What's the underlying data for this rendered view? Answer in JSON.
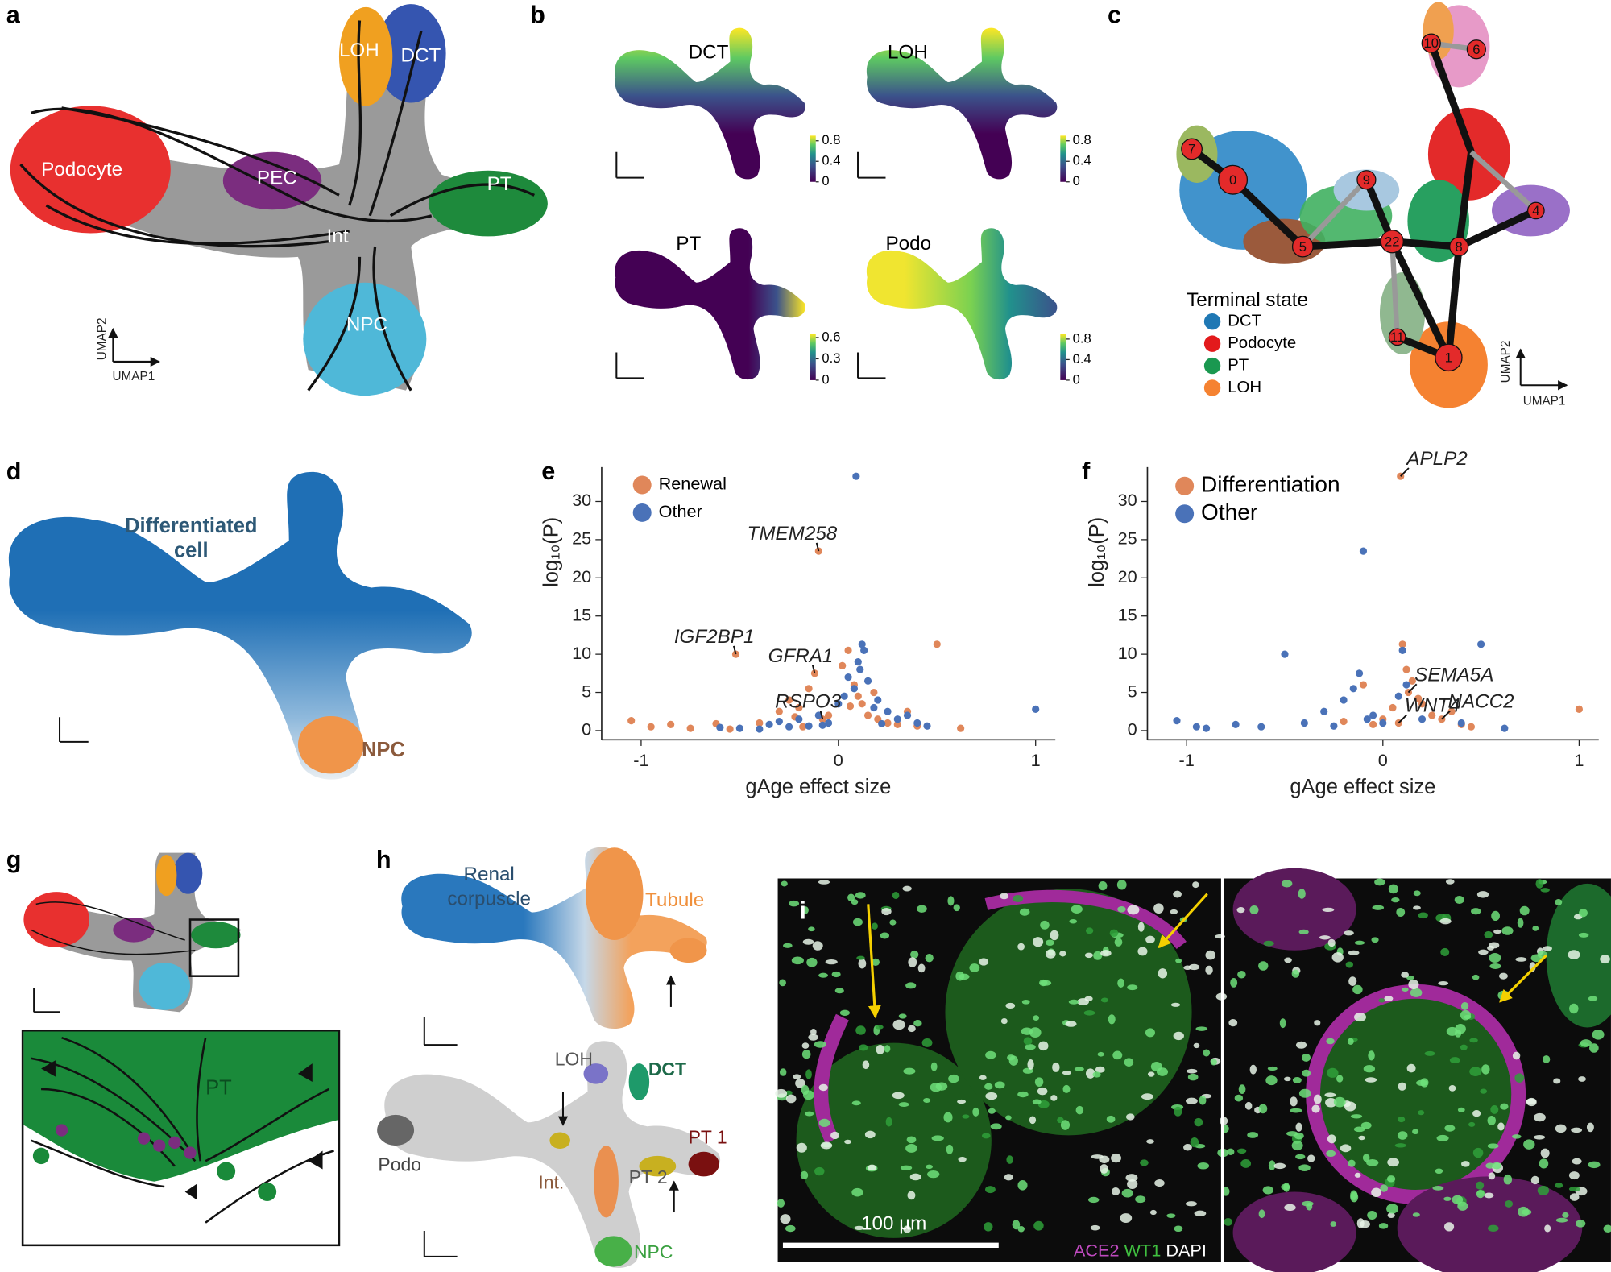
{
  "panel_labels": [
    "a",
    "b",
    "c",
    "d",
    "e",
    "f",
    "g",
    "h",
    "i"
  ],
  "panel_a": {
    "labels": [
      "LOH",
      "DCT",
      "Podocyte",
      "PEC",
      "PT",
      "Int",
      "NPC"
    ],
    "x_axis": "UMAP1",
    "y_axis": "UMAP2"
  },
  "panel_b": {
    "maps": [
      {
        "title": "DCT",
        "colorbar": {
          "lim": [
            0,
            0.9
          ],
          "ticks": [
            0,
            0.4,
            0.8
          ]
        }
      },
      {
        "title": "LOH",
        "colorbar": {
          "lim": [
            0,
            0.9
          ],
          "ticks": [
            0,
            0.4,
            0.8
          ]
        }
      },
      {
        "title": "PT",
        "colorbar": {
          "lim": [
            0,
            0.65
          ],
          "ticks": [
            0,
            0.3,
            0.6
          ]
        }
      },
      {
        "title": "Podo",
        "colorbar": {
          "lim": [
            0,
            0.9
          ],
          "ticks": [
            0,
            0.4,
            0.8
          ]
        }
      }
    ]
  },
  "panel_c": {
    "legend_title": "Terminal state",
    "legend": [
      {
        "name": "DCT",
        "color": "#1f78b4"
      },
      {
        "name": "Podocyte",
        "color": "#e31a1c"
      },
      {
        "name": "PT",
        "color": "#1a9850"
      },
      {
        "name": "LOH",
        "color": "#f58231"
      }
    ],
    "nodes": [
      "7",
      "0",
      "5",
      "9",
      "22",
      "8",
      "4",
      "10",
      "6",
      "11",
      "1"
    ],
    "x_axis": "UMAP1",
    "y_axis": "UMAP2"
  },
  "panel_d": {
    "labels": [
      "Differentiated",
      "cell",
      "NPC"
    ]
  },
  "chart_data": [
    {
      "type": "scatter",
      "x_label": "gAge effect size",
      "y_label": "log₁₀(P)",
      "xlim": [
        -1.2,
        1.1
      ],
      "ylim": [
        -1.2,
        34.5
      ],
      "xticks": [
        -1,
        0,
        1
      ],
      "yticks": [
        0,
        5,
        10,
        15,
        20,
        25,
        30
      ],
      "series": [
        {
          "name": "Renewal",
          "color": "#e0875a",
          "x": [
            -1.05,
            -0.95,
            -0.85,
            -0.75,
            -0.62,
            -0.55,
            -0.52,
            -0.4,
            -0.3,
            -0.25,
            -0.2,
            -0.15,
            -0.12,
            -0.1,
            -0.08,
            -0.05,
            0.02,
            0.05,
            0.08,
            0.1,
            0.12,
            0.15,
            0.2,
            0.25,
            0.3,
            0.35,
            0.4,
            0.5,
            0.62,
            -0.18,
            0.06,
            -0.22,
            0.18
          ],
          "values": [
            1.3,
            0.5,
            0.8,
            0.3,
            0.9,
            0.2,
            10.0,
            1.0,
            2.5,
            4.0,
            3.0,
            5.5,
            7.5,
            23.5,
            1.5,
            2.0,
            8.5,
            10.5,
            6.0,
            4.5,
            3.5,
            2.0,
            1.5,
            1.0,
            0.8,
            2.5,
            0.6,
            11.3,
            0.3,
            0.5,
            3.2,
            1.8,
            5.0
          ]
        },
        {
          "name": "Other",
          "color": "#4a72b8",
          "x": [
            0.09,
            1.0,
            -0.5,
            -0.35,
            -0.3,
            -0.25,
            -0.2,
            -0.15,
            -0.1,
            -0.05,
            0.0,
            0.03,
            0.05,
            0.08,
            0.1,
            0.12,
            0.15,
            0.18,
            0.2,
            0.25,
            0.3,
            0.35,
            0.4,
            0.45,
            -0.6,
            -0.4,
            0.13,
            0.11,
            0.22,
            -0.08
          ],
          "values": [
            33.3,
            2.8,
            0.3,
            0.8,
            1.2,
            0.5,
            1.5,
            0.6,
            2.0,
            1.0,
            3.5,
            4.5,
            7.0,
            5.5,
            9.0,
            11.3,
            6.5,
            3.0,
            4.0,
            2.5,
            1.5,
            2.0,
            1.0,
            0.6,
            0.4,
            0.2,
            10.5,
            8.0,
            0.9,
            0.7
          ]
        }
      ],
      "annotations": [
        {
          "text": "TMEM258",
          "x": -0.1,
          "y": 23.5
        },
        {
          "text": "IGF2BP1",
          "x": -0.52,
          "y": 10.0
        },
        {
          "text": "GFRA1",
          "x": -0.12,
          "y": 7.5
        },
        {
          "text": "RSPO3",
          "x": -0.08,
          "y": 1.5
        }
      ]
    },
    {
      "type": "scatter",
      "x_label": "gAge effect size",
      "y_label": "log₁₀(P)",
      "xlim": [
        -1.2,
        1.1
      ],
      "ylim": [
        -1.2,
        34.5
      ],
      "xticks": [
        -1,
        0,
        1
      ],
      "yticks": [
        0,
        5,
        10,
        15,
        20,
        25,
        30
      ],
      "series": [
        {
          "name": "Differentiation",
          "color": "#e0875a",
          "x": [
            0.09,
            1.0,
            0.1,
            0.15,
            0.13,
            0.2,
            0.25,
            0.3,
            0.35,
            0.12,
            0.05,
            0.0,
            -0.05,
            -0.1,
            -0.2,
            0.4,
            0.45,
            0.08,
            0.18
          ],
          "values": [
            33.3,
            2.8,
            11.3,
            6.5,
            5.0,
            3.5,
            2.0,
            1.5,
            2.5,
            8.0,
            3.0,
            1.5,
            0.8,
            6.0,
            1.2,
            0.8,
            0.5,
            1.0,
            4.2
          ]
        },
        {
          "name": "Other",
          "color": "#4a72b8",
          "x": [
            -0.5,
            -1.05,
            -0.95,
            -0.9,
            -0.75,
            -0.62,
            -0.1,
            0.5,
            -0.3,
            -0.2,
            -0.15,
            -0.12,
            -0.08,
            0.1,
            0.12,
            0.08,
            -0.05,
            0.0,
            0.2,
            0.4,
            0.62,
            -0.4,
            -0.25
          ],
          "values": [
            10.0,
            1.3,
            0.5,
            0.3,
            0.8,
            0.5,
            23.5,
            11.3,
            2.5,
            4.0,
            5.5,
            7.5,
            1.5,
            10.5,
            6.0,
            4.5,
            2.0,
            1.0,
            1.5,
            1.0,
            0.3,
            1.0,
            0.6
          ]
        }
      ],
      "annotations": [
        {
          "text": "APLP2",
          "x": 0.09,
          "y": 33.3
        },
        {
          "text": "SEMA5A",
          "x": 0.13,
          "y": 5.0
        },
        {
          "text": "NACC2",
          "x": 0.3,
          "y": 1.5
        },
        {
          "text": "WNT4",
          "x": 0.08,
          "y": 1.0
        }
      ]
    }
  ],
  "panel_g": {
    "label": "PT"
  },
  "panel_h": {
    "top_labels": [
      "Renal",
      "corpuscle",
      "Tubule"
    ],
    "bottom_labels": [
      "LOH",
      "DCT",
      "Podo",
      "Int.",
      "PT 2",
      "PT 1",
      "NPC"
    ]
  },
  "panel_i": {
    "label": "i",
    "scale_bar": "100 µm",
    "stains": [
      "ACE2",
      "WT1",
      "DAPI"
    ]
  }
}
